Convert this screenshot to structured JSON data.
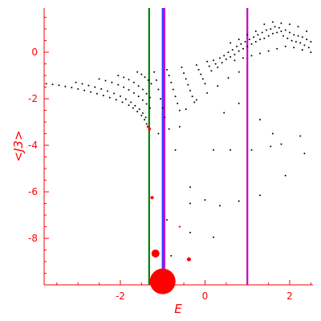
{
  "chart_data": {
    "type": "scatter",
    "xlabel": "E",
    "ylabel": "<J3>",
    "xlim": [
      -3.8,
      2.55
    ],
    "ylim": [
      -10.0,
      1.9
    ],
    "x_ticks": [
      -2,
      0,
      2
    ],
    "x_tick_labels": [
      "-2",
      "0",
      "2"
    ],
    "y_ticks": [
      0,
      -2,
      -4,
      -6,
      -8
    ],
    "y_tick_labels": [
      "0",
      "-2",
      "-4",
      "-6",
      "-8"
    ],
    "grid": false,
    "colors": {
      "axis": "#ff0000",
      "points": "#000000",
      "green_line": "#008000",
      "blue_line": "#3333ff",
      "magenta_line": "#cc00cc",
      "markers": "#ff0000"
    },
    "vertical_lines": [
      {
        "x": -1.32,
        "color": "#008000"
      },
      {
        "x": -1.0,
        "color": "#3333ff"
      },
      {
        "x": -0.96,
        "color": "#cc00cc"
      },
      {
        "x": 1.0,
        "color": "#cc00cc"
      }
    ],
    "red_markers": [
      {
        "x": -1.0,
        "y": -9.85,
        "size": 16
      },
      {
        "x": -1.17,
        "y": -8.65,
        "size": 5
      },
      {
        "x": -0.38,
        "y": -8.9,
        "size": 2.5
      },
      {
        "x": -1.25,
        "y": -6.25,
        "size": 2.0
      },
      {
        "x": -1.31,
        "y": -3.3,
        "size": 1.8
      },
      {
        "x": -1.35,
        "y": -3.2,
        "size": 1.5
      },
      {
        "x": -0.6,
        "y": -7.5,
        "size": 1.2
      }
    ],
    "series": [
      {
        "points": [
          [
            -3.75,
            -1.35
          ],
          [
            -3.6,
            -1.38
          ],
          [
            -3.45,
            -1.42
          ],
          [
            -3.3,
            -1.47
          ],
          [
            -3.15,
            -1.52
          ],
          [
            -3.0,
            -1.58
          ],
          [
            -2.85,
            -1.64
          ],
          [
            -2.7,
            -1.71
          ],
          [
            -2.55,
            -1.78
          ],
          [
            -2.4,
            -1.86
          ],
          [
            -2.25,
            -1.95
          ],
          [
            -2.1,
            -2.04
          ],
          [
            -1.95,
            -2.15
          ],
          [
            -1.8,
            -2.28
          ],
          [
            -1.7,
            -2.4
          ],
          [
            -1.6,
            -2.55
          ],
          [
            -1.5,
            -2.72
          ],
          [
            -1.43,
            -2.9
          ],
          [
            -1.38,
            -3.08
          ],
          [
            -3.05,
            -1.3
          ],
          [
            -2.9,
            -1.36
          ],
          [
            -2.75,
            -1.43
          ],
          [
            -2.6,
            -1.5
          ],
          [
            -2.45,
            -1.58
          ],
          [
            -2.3,
            -1.67
          ],
          [
            -2.15,
            -1.77
          ],
          [
            -2.0,
            -1.89
          ],
          [
            -1.87,
            -2.02
          ],
          [
            -1.75,
            -2.15
          ],
          [
            -1.65,
            -2.3
          ],
          [
            -1.55,
            -2.45
          ],
          [
            -1.47,
            -2.62
          ],
          [
            -1.4,
            -2.8
          ],
          [
            -2.5,
            -1.15
          ],
          [
            -2.35,
            -1.22
          ],
          [
            -2.2,
            -1.3
          ],
          [
            -2.05,
            -1.4
          ],
          [
            -1.92,
            -1.5
          ],
          [
            -1.8,
            -1.62
          ],
          [
            -1.68,
            -1.75
          ],
          [
            -1.57,
            -1.9
          ],
          [
            -1.47,
            -2.06
          ],
          [
            -1.38,
            -2.22
          ],
          [
            -1.3,
            -2.4
          ],
          [
            -2.05,
            -1.0
          ],
          [
            -1.92,
            -1.08
          ],
          [
            -1.8,
            -1.18
          ],
          [
            -1.68,
            -1.3
          ],
          [
            -1.57,
            -1.45
          ],
          [
            -1.47,
            -1.6
          ],
          [
            -1.38,
            -1.78
          ],
          [
            -1.3,
            -1.95
          ],
          [
            -1.6,
            -0.85
          ],
          [
            -1.5,
            -0.95
          ],
          [
            -1.42,
            -1.07
          ],
          [
            -1.34,
            -1.2
          ],
          [
            -1.27,
            -1.35
          ],
          [
            -1.2,
            -0.85
          ],
          [
            -1.15,
            -1.2
          ],
          [
            -1.1,
            -1.6
          ],
          [
            -1.05,
            -2.0
          ],
          [
            -1.0,
            -2.4
          ],
          [
            -0.95,
            -2.8
          ],
          [
            -0.9,
            -0.75
          ],
          [
            -0.85,
            -1.0
          ],
          [
            -0.8,
            -1.3
          ],
          [
            -0.75,
            -1.6
          ],
          [
            -0.7,
            -1.9
          ],
          [
            -0.65,
            -2.2
          ],
          [
            -0.6,
            -2.5
          ],
          [
            -0.55,
            -0.65
          ],
          [
            -0.5,
            -0.9
          ],
          [
            -0.45,
            -1.15
          ],
          [
            -0.4,
            -1.4
          ],
          [
            -0.35,
            -1.65
          ],
          [
            -0.3,
            -1.9
          ],
          [
            -0.25,
            -2.15
          ],
          [
            -0.2,
            -0.55
          ],
          [
            -0.15,
            -0.75
          ],
          [
            -0.1,
            -0.95
          ],
          [
            -0.05,
            -1.15
          ],
          [
            0.0,
            -1.35
          ],
          [
            0.05,
            -0.4
          ],
          [
            0.1,
            -0.6
          ],
          [
            0.15,
            -0.8
          ],
          [
            0.2,
            -0.35
          ],
          [
            0.25,
            -0.5
          ],
          [
            0.3,
            -0.65
          ],
          [
            0.35,
            -0.25
          ],
          [
            0.4,
            -0.45
          ],
          [
            0.45,
            -0.15
          ],
          [
            0.5,
            -0.3
          ],
          [
            0.55,
            0.0
          ],
          [
            0.6,
            -0.2
          ],
          [
            0.65,
            0.1
          ],
          [
            0.7,
            -0.1
          ],
          [
            0.75,
            0.25
          ],
          [
            0.8,
            0.05
          ],
          [
            0.85,
            0.35
          ],
          [
            0.9,
            0.15
          ],
          [
            0.95,
            0.45
          ],
          [
            1.0,
            0.25
          ],
          [
            1.05,
            0.55
          ],
          [
            1.1,
            0.35
          ],
          [
            1.15,
            0.65
          ],
          [
            1.2,
            0.45
          ],
          [
            1.25,
            0.75
          ],
          [
            1.3,
            0.55
          ],
          [
            1.35,
            0.85
          ],
          [
            1.4,
            0.6
          ],
          [
            1.45,
            0.95
          ],
          [
            1.5,
            0.7
          ],
          [
            1.55,
            1.0
          ],
          [
            1.6,
            0.8
          ],
          [
            1.65,
            1.1
          ],
          [
            1.7,
            0.85
          ],
          [
            1.75,
            1.05
          ],
          [
            1.8,
            0.9
          ],
          [
            1.85,
            0.7
          ],
          [
            1.9,
            0.95
          ],
          [
            1.95,
            0.6
          ],
          [
            2.0,
            0.85
          ],
          [
            2.05,
            0.5
          ],
          [
            2.1,
            0.75
          ],
          [
            2.15,
            0.45
          ],
          [
            2.2,
            0.7
          ],
          [
            2.25,
            0.4
          ],
          [
            2.3,
            0.65
          ],
          [
            2.35,
            0.3
          ],
          [
            2.4,
            0.55
          ],
          [
            2.45,
            0.2
          ],
          [
            2.5,
            0.45
          ],
          [
            0.6,
            0.4
          ],
          [
            0.8,
            0.55
          ],
          [
            1.0,
            0.75
          ],
          [
            1.2,
            0.9
          ],
          [
            1.4,
            1.2
          ],
          [
            1.6,
            1.3
          ],
          [
            1.8,
            1.25
          ],
          [
            2.0,
            1.2
          ],
          [
            2.2,
            1.1
          ],
          [
            2.4,
            0.9
          ],
          [
            0.7,
            -0.35
          ],
          [
            0.9,
            -0.25
          ],
          [
            1.1,
            -0.15
          ],
          [
            1.3,
            -0.05
          ],
          [
            1.5,
            0.05
          ],
          [
            1.7,
            0.15
          ],
          [
            1.9,
            0.25
          ],
          [
            2.1,
            0.2
          ],
          [
            2.3,
            0.1
          ],
          [
            2.5,
            0.0
          ],
          [
            -0.45,
            -2.45
          ],
          [
            -0.2,
            -2.05
          ],
          [
            0.05,
            -1.75
          ],
          [
            0.3,
            -1.45
          ],
          [
            0.55,
            -1.1
          ],
          [
            0.8,
            -0.85
          ],
          [
            -1.1,
            -3.5
          ],
          [
            -0.85,
            -3.3
          ],
          [
            -0.6,
            -3.2
          ],
          [
            0.45,
            -2.6
          ],
          [
            0.8,
            -2.2
          ],
          [
            -0.7,
            -4.2
          ],
          [
            0.2,
            -4.2
          ],
          [
            0.6,
            -4.2
          ],
          [
            1.1,
            -4.2
          ],
          [
            1.55,
            -4.05
          ],
          [
            1.8,
            -3.95
          ],
          [
            2.35,
            -4.35
          ],
          [
            1.3,
            -2.9
          ],
          [
            1.6,
            -3.5
          ],
          [
            2.25,
            -3.6
          ],
          [
            -0.35,
            -5.8
          ],
          [
            1.9,
            -5.3
          ],
          [
            1.3,
            -6.15
          ],
          [
            0.8,
            -6.4
          ],
          [
            0.35,
            -6.6
          ],
          [
            0.0,
            -6.35
          ],
          [
            -0.35,
            -6.5
          ],
          [
            -0.9,
            -7.2
          ],
          [
            -0.35,
            -7.75
          ],
          [
            0.2,
            -7.95
          ],
          [
            -0.8,
            -8.75
          ]
        ]
      }
    ]
  }
}
